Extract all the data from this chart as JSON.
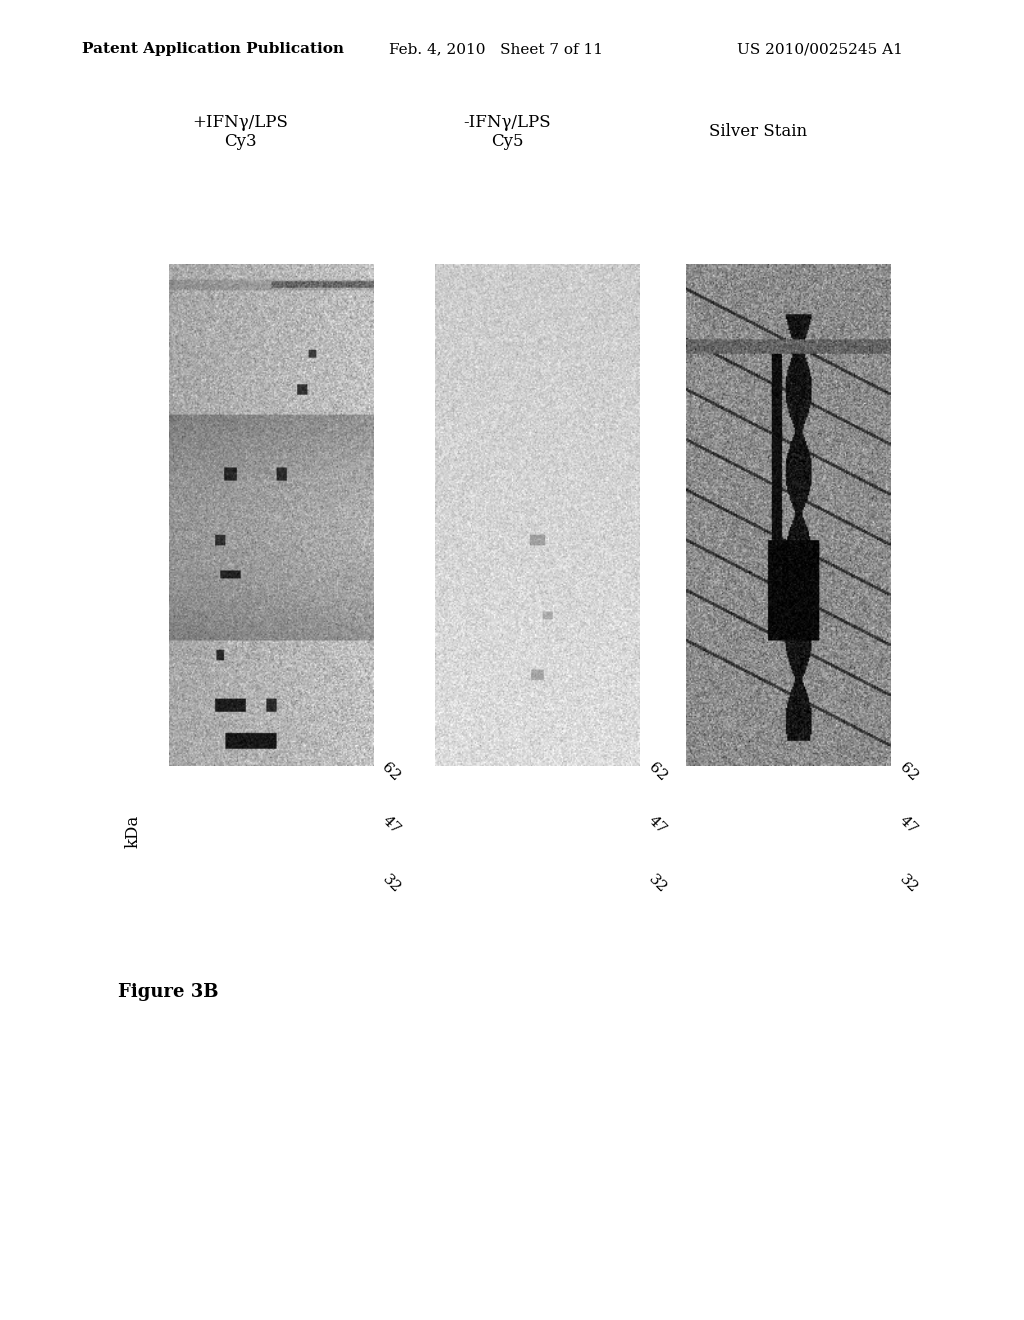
{
  "header_left": "Patent Application Publication",
  "header_center": "Feb. 4, 2010   Sheet 7 of 11",
  "header_right": "US 2010/0025245 A1",
  "figure_label": "Figure 3B",
  "panel_labels": [
    "+IFNγ/LPS\nCy3",
    "-IFNγ/LPS\nCy5",
    "Silver Stain"
  ],
  "kda_labels": [
    "kDa",
    "62",
    "47",
    "32"
  ],
  "background_color": "#ffffff",
  "header_fontsize": 11,
  "figure_label_fontsize": 13,
  "panel_label_fontsize": 12,
  "kda_fontsize": 11,
  "img1_bg": [
    200,
    200,
    200
  ],
  "img2_bg": [
    220,
    220,
    220
  ],
  "img3_bg": [
    150,
    150,
    150
  ]
}
